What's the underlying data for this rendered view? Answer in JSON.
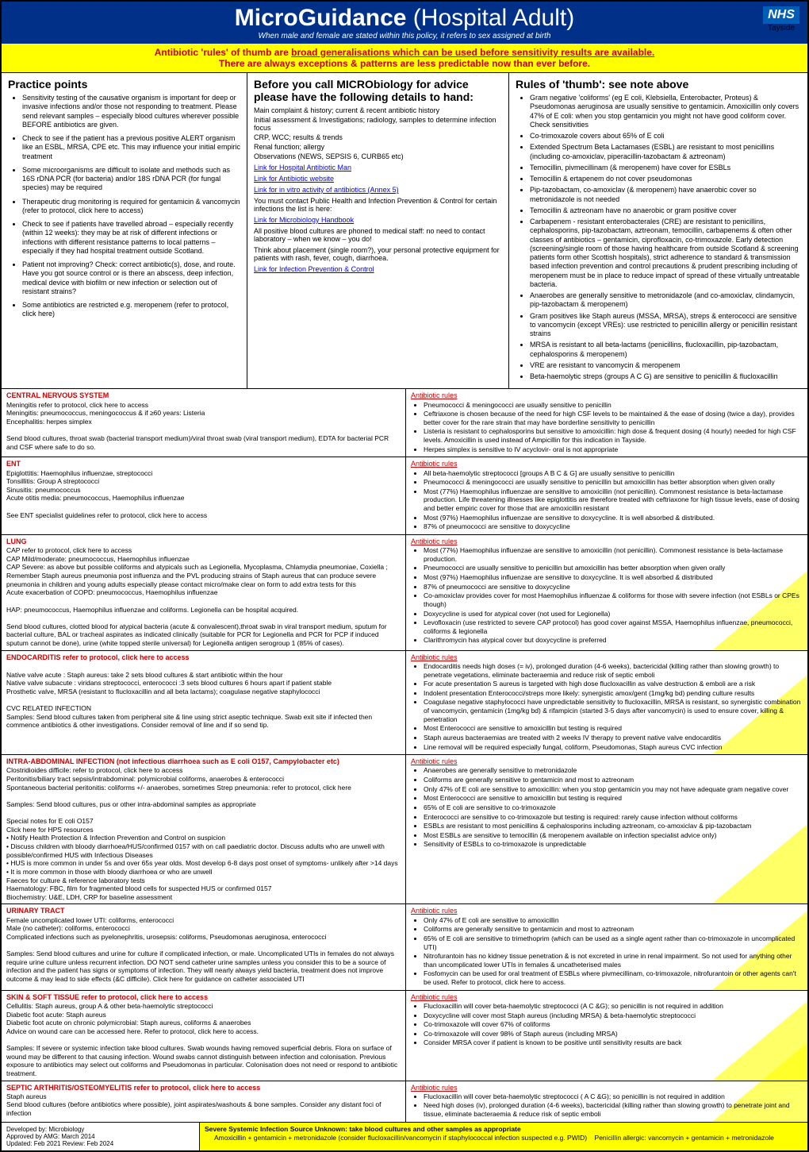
{
  "header": {
    "title_bold": "MicroGuidance",
    "title_light": " (Hospital Adult)",
    "subtitle": "When male and female are stated within this policy, it refers to sex assigned at birth",
    "nhs": "NHS",
    "tayside": "Tayside"
  },
  "banner": {
    "line1a": "Antibiotic 'rules' of thumb are ",
    "line1b": "broad generalisations which can be used before sensitivity results are available.",
    "line2": "There are always exceptions & patterns are less predictable now than ever before."
  },
  "col1": {
    "heading": "Practice points",
    "items": [
      "Sensitivity testing of the causative organism is important for deep or invasive infections and/or those not responding to treatment. Please send relevant samples – especially blood cultures wherever possible BEFORE antibiotics are given.",
      "Check to see if the patient has a previous positive ALERT organism like an ESBL, MRSA, CPE etc. This may influence your initial empiric treatment",
      "Some microorganisms are difficult to isolate and methods such as 16S rDNA PCR (for bacteria) and/or 18S rDNA PCR (for fungal species) may be required",
      "Therapeutic drug monitoring is required for gentamicin & vancomycin (refer to protocol, click here to access)",
      "Check to see if patients have travelled abroad – especially recently (within 12 weeks): they may be at risk of different infections or infections with different resistance patterns to local patterns – especially if they had hospital treatment outside Scotland.",
      "Patient not improving? Check: correct antibiotic(s), dose, and route. Have you got source control or is there an abscess, deep infection, medical device with biofilm or new infection or selection out of resistant strains?",
      "Some antibiotics are restricted e.g. meropenem (refer to protocol, click here)"
    ]
  },
  "col2": {
    "heading": "Before you call MICRObiology for advice please have the following details to hand:",
    "body": [
      "Main complaint & history; current & recent antibiotic history",
      "Initial assessment & Investigations; radiology, samples to determine infection focus",
      "CRP, WCC; results & trends",
      "Renal function; allergy",
      "Observations (NEWS, SEPSIS 6, CURB65 etc)"
    ],
    "links": [
      "Link for Hospital Antibiotic Man",
      "Link for Antibiotic website",
      "Link for in vitro activity of antibiotics (Annex 5)"
    ],
    "after": [
      "You must contact Public Health and Infection Prevention & Control for certain infections the list is here:",
      "Link for Microbiology Handbook",
      "All positive blood cultures are phoned to medical staff: no need to contact laboratory – when we know – you do!",
      "Think about placement (single room?), your personal protective equipment for patients with rash, fever, cough, diarrhoea.",
      "Link for Infection Prevention & Control"
    ]
  },
  "col3": {
    "heading": "Rules of 'thumb': see note above",
    "items": [
      "Gram negative 'coliforms' (eg E coli, Klebsiella, Enterobacter, Proteus) & Pseudomonas aeruginosa are usually sensitive to gentamicin. Amoxicillin only covers 47% of E coli: when you stop gentamicin you might not have good coliform cover. Check sensitivities",
      "Co-trimoxazole covers about 65% of E coli",
      "Extended Spectrum Beta Lactamases (ESBL) are resistant to most penicillins (including co-amoxiclav, piperacillin-tazobactam & aztreonam)",
      "Temocillin, pivmecillinam (& meropenem) have cover for ESBLs",
      "Temocillin & ertapenem do not cover pseudomonas",
      "Pip-tazobactam, co-amoxiclav (& meropenem) have anaerobic cover so metronidazole is not needed",
      "Temocillin & aztreonam have no anaerobic or gram positive cover",
      "Carbapenem - resistant enterobacterales (CRE) are resistant to penicillins, cephalosporins, pip-tazobactam, aztreonam, temocillin, carbapenems & often other classes of antibiotics – gentamicin, ciprofloxacin, co-trimoxazole. Early detection (screening/single room of those having healthcare from outside Scotland & screening patients form other Scottish hospitals), strict adherence to standard & transmission based infection prevention and control precautions & prudent prescribing including of meropenem must be in place to reduce impact of spread of these virtually untreatable bacteria.",
      "Anaerobes are generally sensitive to metronidazole (and co-amoxiclav, clindamycin, pip-tazobactam & meropenem)",
      "Gram positives like Staph aureus (MSSA, MRSA), streps & enterococci are sensitive to vancomycin (except VREs): use restricted to penicillin allergy or penicillin resistant strains",
      "MRSA is resistant to all beta-lactams (penicillins, flucloxacillin, pip-tazobactam, cephalosporins & meropenem)",
      "VRE are resistant to vancomycin & meropenem",
      "Beta-haemolytic streps (groups A C G) are sensitive to penicillin & flucloxacillin"
    ]
  },
  "sections": [
    {
      "lhead": "CENTRAL NERVOUS SYSTEM",
      "lcolor": "#cc0000",
      "left": [
        "Meningitis refer to protocol, click here to access",
        "Meningitis: pneumococcus, meningococcus & if ≥60 years: Listeria",
        "Encephalitis: herpes simplex",
        "",
        "Send blood cultures, throat swab (bacterial transport medium)/viral throat swab (viral transport medium), EDTA for bacterial PCR and CSF where safe to do so."
      ],
      "rhead": "Antibiotic rules",
      "right": [
        "Pneumococci & meningococci are usually sensitive to penicillin",
        "Ceftriaxone is chosen because of the need for high CSF levels to be maintained & the ease of dosing (twice a day), provides better cover for the rare strain that may have borderline sensitivity to penicillin",
        "Listeria is resistant to cephalosporins but sensitive to amoxicillin: high dose & frequent dosing (4 hourly) needed for high CSF levels. Amoxicillin is used instead of Ampicillin for this indication in Tayside.",
        "Herpes simplex is sensitive to IV acyclovir- oral is not appropriate"
      ]
    },
    {
      "lhead": "ENT",
      "lcolor": "#cc0000",
      "left": [
        "Epiglottitis: Haemophilus influenzae, streptococci",
        "Tonsillitis: Group A streptococci",
        "Sinusitis: pneumococcus",
        "Acute otitis media: pneumococcus, Haemophilus influenzae",
        "",
        "See ENT specialist guidelines refer to protocol, click here to access"
      ],
      "rhead": "Antibiotic rules",
      "right": [
        "All beta-haemolytic streptococci [groups A B C & G] are usually sensitive to penicillin",
        "Pneumococci & meningococci are usually sensitive to penicillin but amoxicillin has better absorption when given orally",
        "Most (77%) Haemophilus influenzae are sensitive to amoxicillin (not penicillin). Commonest resistance is beta-lactamase production. Life threatening illnesses like epiglottitis are therefore treated with ceftriaxone for high tissue levels, ease of dosing and better empiric cover for those that are amoxicillin resistant",
        "Most (97%) Haemophilus influenzae are sensitive to doxycycline. It is well absorbed & distributed.",
        "87% of pneumococci are sensitive to doxycycline"
      ]
    },
    {
      "lhead": "LUNG",
      "lcolor": "#cc0000",
      "left": [
        "CAP refer to protocol, click here to access",
        "CAP Mild/moderate: pneumococcus, Haemophilus influenzae",
        "CAP Severe: as above but possible coliforms and atypicals such as Legionella, Mycoplasma, Chlamydia pneumoniae, Coxiella ; Remember Staph aureus pneumonia post influenza and the PVL producing strains of Staph aureus that can produce severe pneumonia in children and young adults especially please contact micro/make clear on form to add extra tests for this",
        "Acute exacerbation of COPD: pneumococcus, Haemophilus influenzae",
        "",
        "HAP: pneumococcus, Haemophilus influenzae and coliforms. Legionella can be hospital acquired.",
        "",
        "Send blood cultures, clotted blood for atypical bacteria (acute & convalescent),throat swab in viral transport medium, sputum for bacterial culture, BAL or tracheal aspirates as indicated clinically (suitable for PCR for Legionella and PCR for PCP if induced sputum cannot be done), urine (white topped sterile universal) for Legionella antigen serogroup 1 (85% of cases)."
      ],
      "rhead": "Antibiotic rules",
      "right": [
        "Most (77%) Haemophilus influenzae are sensitive to amoxicillin (not penicillin). Commonest resistance is beta-lactamase production.",
        "Pneumococci are usually sensitive to penicillin but amoxicillin has better absorption when given orally",
        "Most (97%) Haemophilus influenzae are sensitive to doxycycline. It is well absorbed & distributed",
        "87% of pneumococci are sensitive to doxycycline",
        "Co-amoxiclav provides cover for most Haemophilus influenzae & coliforms for those with severe infection (not ESBLs or CPEs though)",
        "Doxycycline is used for atypical cover (not used for Legionella)",
        "Levofloxacin (use restricted to severe CAP protocol) has good cover against MSSA, Haemophilus influenzae, pneumococci, coliforms & legionella",
        "Clarithromycin has atypical cover but doxycycline is preferred"
      ],
      "tri": true
    },
    {
      "lhead": "ENDOCARDITIS refer to protocol, click here to access",
      "lcolor": "#cc0000",
      "left": [
        "",
        "Native valve acute : Staph aureus: take 2 sets blood cultures & start antibiotic within the hour",
        "Native valve subacute : viridans streptococci, enterococci :3 sets blood cultures 6 hours apart if patient stable",
        "Prosthetic valve, MRSA (resistant to flucloxacillin and all beta lactams); coagulase negative staphylococci",
        "",
        "CVC RELATED INFECTION",
        "Samples: Send blood cultures taken from peripheral site & line using strict aseptic technique. Swab exit site if infected then commence antibiotics & other investigations. Consider removal of line and if so send tip."
      ],
      "rhead": "Antibiotic rules",
      "right": [
        "Endocarditis needs high doses (= iv), prolonged duration (4-6 weeks), bactericidal (killing rather than slowing growth) to penetrate vegetations, eliminate bacteraemia and reduce risk of septic emboli",
        "For acute presentation S aureus is targeted with high dose flucloxacillin as valve destruction & emboli are a risk",
        "Indolent presentation Enterococci/streps more likely: synergistic amox/gent (1mg/kg bd) pending culture results",
        "Coagulase negative staphylococci have unpredictable sensitivity to flucloxacillin, MRSA is resistant, so synergistic combination of vancomycin, gentamicin (1mg/kg bd) & rifampicin (started 3-5 days after vancomycin) is used to ensure cover, killing & penetration",
        "Most Enterococci are sensitive to amoxicillin but testing is required",
        "Staph aureus bacteraemias are treated with 2 weeks IV therapy to prevent native valve endocarditis",
        "Line removal will be required especially fungal, coliform, Pseudomonas, Staph aureus CVC infection"
      ],
      "tri": true
    },
    {
      "lhead": "INTRA-ABDOMINAL INFECTION (not infectious diarrhoea such as E coli O157, Campylobacter etc)",
      "lcolor": "#cc0000",
      "left": [
        "Clostridioides difficile: refer to protocol, click here to access",
        "Peritonitis/biliary tract sepsis/intrabdominal: polymicrobial coliforms, anaerobes & enterococci",
        "Spontaneous bacterial peritonitis: coliforms +/- anaerobes, sometimes Strep pneumonia: refer to protocol, click here",
        "",
        "Samples: Send blood cultures, pus or other intra-abdominal samples as appropriate",
        "",
        "Special notes for E coli O157",
        "Click here for HPS resources",
        "•  Notify Health Protection & Infection Prevention and Control on suspicion",
        "•  Discuss children with bloody diarrhoea/HUS/confirmed 0157 with on call paediatric doctor. Discuss adults who are unwell with possible/confirmed HUS with Infectious Diseases",
        "•  HUS is more common in under 5s and over 65s year olds. Most develop 6-8 days post onset of symptoms- unlikely after >14 days",
        "•  It is more common in those with bloody diarrhoea or who are unwell",
        "Faeces for culture & reference laboratory tests",
        "Haematology: FBC, film for fragmented blood cells for suspected HUS or confirmed 0157",
        "Biochemistry: U&E, LDH, CRP for baseline assessment"
      ],
      "rhead": "Antibiotic rules",
      "right": [
        "Anaerobes are generally sensitive to metronidazole",
        "Coliforms are generally sensitive to gentamicin and most to aztreonam",
        "Only 47% of E coli are sensitive to amoxicillin: when you stop gentamicin you may not have adequate gram negative cover",
        "Most Enterococci are sensitive to amoxicillin but testing is required",
        "65% of E coli are sensitive to co-trimoxazole",
        "Enterococci are sensitive to co-trimoxazole but testing is required: rarely cause infection without coliforms",
        "ESBLs are resistant to most penicillins & cephalosporins including aztreonam, co-amoxiclav & pip-tazobactam",
        "Most ESBLs are sensitive to temocillin (& meropenem available on infection specialist advice only)",
        "Sensitivity of ESBLs to co-trimoxazole is unpredictable"
      ],
      "tri": true
    },
    {
      "lhead": "URINARY TRACT",
      "lcolor": "#cc0000",
      "left": [
        "Female uncomplicated lower UTI: coliforms, enterococci",
        "Male (no catheter): coliforms, enterococci",
        "Complicated infections such as pyelonephritis, urosepsis: coliforms, Pseudomonas aeruginosa, enterococci",
        "",
        "Samples: Send blood cultures and urine for culture if complicated infection, or male. Uncomplicated UTIs in females do not always require urine culture unless recurrent infection. DO NOT send catheter urine samples unless you consider this to be a source of infection and the patient has signs or symptoms of infection. They will nearly always yield bacteria, treatment does not improve outcome & may lead to side effects (&C difficile). Click here for guidance on catheter associated UTI"
      ],
      "rhead": "Antibiotic rules",
      "right": [
        "Only 47% of E coli are sensitive to amoxicillin",
        "Coliforms are generally sensitive to gentamicin and most to aztreonam",
        "65% of E coli are sensitive to trimethoprim (which can be used as a single agent rather than co-trimoxazole in uncomplicated UTI)",
        "Nitrofurantoin has no kidney tissue penetration & is not excreted in urine in renal impairment. So not used for anything other than uncomplicated lower UTIs in females & uncatheterised males",
        "Fosfomycin can be used for oral treatment of ESBLs where pivmecillinam, co-trimoxazole, nitrofurantoin or other agents can't be used. Refer to protocol, click here to access."
      ],
      "tri": true
    },
    {
      "lhead": "SKIN & SOFT TISSUE refer to protocol, click here to access",
      "lcolor": "#cc0000",
      "left": [
        "Cellulitis: Staph aureus, group A & other beta-haemolytic streptococci",
        "Diabetic foot acute: Staph aureus",
        "Diabetic foot acute on chronic polymicrobial: Staph aureus, coliforms & anaerobes",
        "Advice on wound care can be accessed here. Refer to protocol, click here to access.",
        "",
        "Samples: If severe or systemic infection take blood cultures. Swab wounds having removed superficial debris. Flora on surface of wound may be different to that causing infection. Wound swabs cannot distinguish between infection and colonisation. Previous exposure to antibiotics may select out coliforms and Pseudomonas in particular. Colonisation does not need or respond to antibiotic treatment."
      ],
      "rhead": "Antibiotic rules",
      "right": [
        "Flucloxacillin will cover beta-haemolytic streptococci (A C &G); so penicillin is not required in addition",
        "Doxycycline will cover most Staph aureus (including MRSA) & beta-haemolytic streptococci",
        "Co-trimoxazole will cover 67% of coliforms",
        "Co-trimoxazole will cover 98% of Staph aureus (including MRSA)",
        "Consider MRSA cover if patient is known to be positive until sensitivity results are back"
      ],
      "tri": true
    },
    {
      "lhead": "SEPTIC ARTHRITIS/OSTEOMYELITIS refer to protocol, click here to access",
      "lcolor": "#cc0000",
      "left": [
        "Staph aureus",
        "Send blood cultures (before antibiotics where possible), joint aspirates/washouts & bone samples. Consider any distant foci of infection"
      ],
      "rhead": "Antibiotic rules",
      "right": [
        "Flucloxacillin will cover beta-haemolytic streptococci ( A C &G); so penicillin is not required in addition",
        "Need high doses (iv), prolonged duration (4-6 weeks), bactericidal (killing rather than slowing growth) to penetrate joint and tissue, eliminate bacteraemia & reduce risk of septic emboli"
      ],
      "tri": true
    }
  ],
  "footer": {
    "dev": "Developed by: Microbiology",
    "app": "Approved by AMG: March 2014",
    "upd": "Updated: Feb 2021   Review: Feb 2024",
    "sev1": "Severe Systemic Infection Source Unknown: take blood cultures and other samples as appropriate",
    "sev2": "Amoxicillin + gentamicin + metronidazole (consider flucloxacillin/vancomycin if staphylococcal infection suspected e.g. PWID)",
    "sev3": "Penicillin allergic: vancomycin + gentamicin + metronidazole"
  }
}
